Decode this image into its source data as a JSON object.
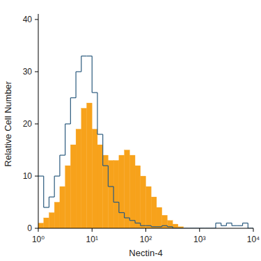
{
  "chart_data": {
    "type": "histogram",
    "x_label": "Nectin-4",
    "y_label": "Relative Cell Number",
    "log": "x",
    "bins": [
      1,
      1.259,
      1.585,
      1.995,
      2.512,
      3.162,
      3.981,
      5.012,
      6.31,
      7.943,
      10,
      12.59,
      15.85,
      19.95,
      25.12,
      31.62,
      39.81,
      50.12,
      63.1,
      79.43,
      100,
      125.9,
      158.5,
      199.5,
      251.2,
      316.2,
      398.1,
      501.2,
      631,
      794.3,
      1000,
      1259,
      1585,
      1995,
      2512,
      3162,
      3981,
      5012,
      6310,
      7943,
      10000
    ],
    "series": [
      {
        "type": "bar",
        "color": "#f7a21b",
        "values": [
          1,
          2,
          3,
          5,
          8,
          12,
          16,
          19,
          23,
          24,
          19,
          16,
          14,
          13,
          13,
          14,
          15,
          14,
          12,
          10,
          8,
          6,
          4,
          2.5,
          1.5,
          0.8,
          0.3,
          0,
          0,
          0,
          0,
          0,
          0,
          0,
          0,
          0,
          0,
          0,
          0,
          0
        ]
      },
      {
        "type": "step",
        "color": "#2b5a7e",
        "values": [
          10,
          4,
          6,
          10,
          14,
          20,
          25,
          30,
          33,
          33,
          26,
          18,
          12,
          8,
          5,
          3,
          2,
          1.5,
          1,
          0.5,
          0.5,
          0.3,
          0.3,
          0.5,
          0.3,
          0,
          0,
          0,
          0,
          0,
          0,
          0,
          0,
          1,
          0.5,
          1,
          0.5,
          0.5,
          1,
          0
        ]
      }
    ],
    "xlim": [
      1,
      10000
    ],
    "xticks": [
      {
        "value": 1,
        "label": "10⁰"
      },
      {
        "value": 10,
        "label": "10¹"
      },
      {
        "value": 100,
        "label": "10²"
      },
      {
        "value": 1000,
        "label": "10³"
      },
      {
        "value": 10000,
        "label": "10⁴"
      }
    ],
    "ylim": [
      0,
      40
    ],
    "yticks": [
      0,
      10,
      20,
      30,
      40
    ],
    "grid": false
  }
}
